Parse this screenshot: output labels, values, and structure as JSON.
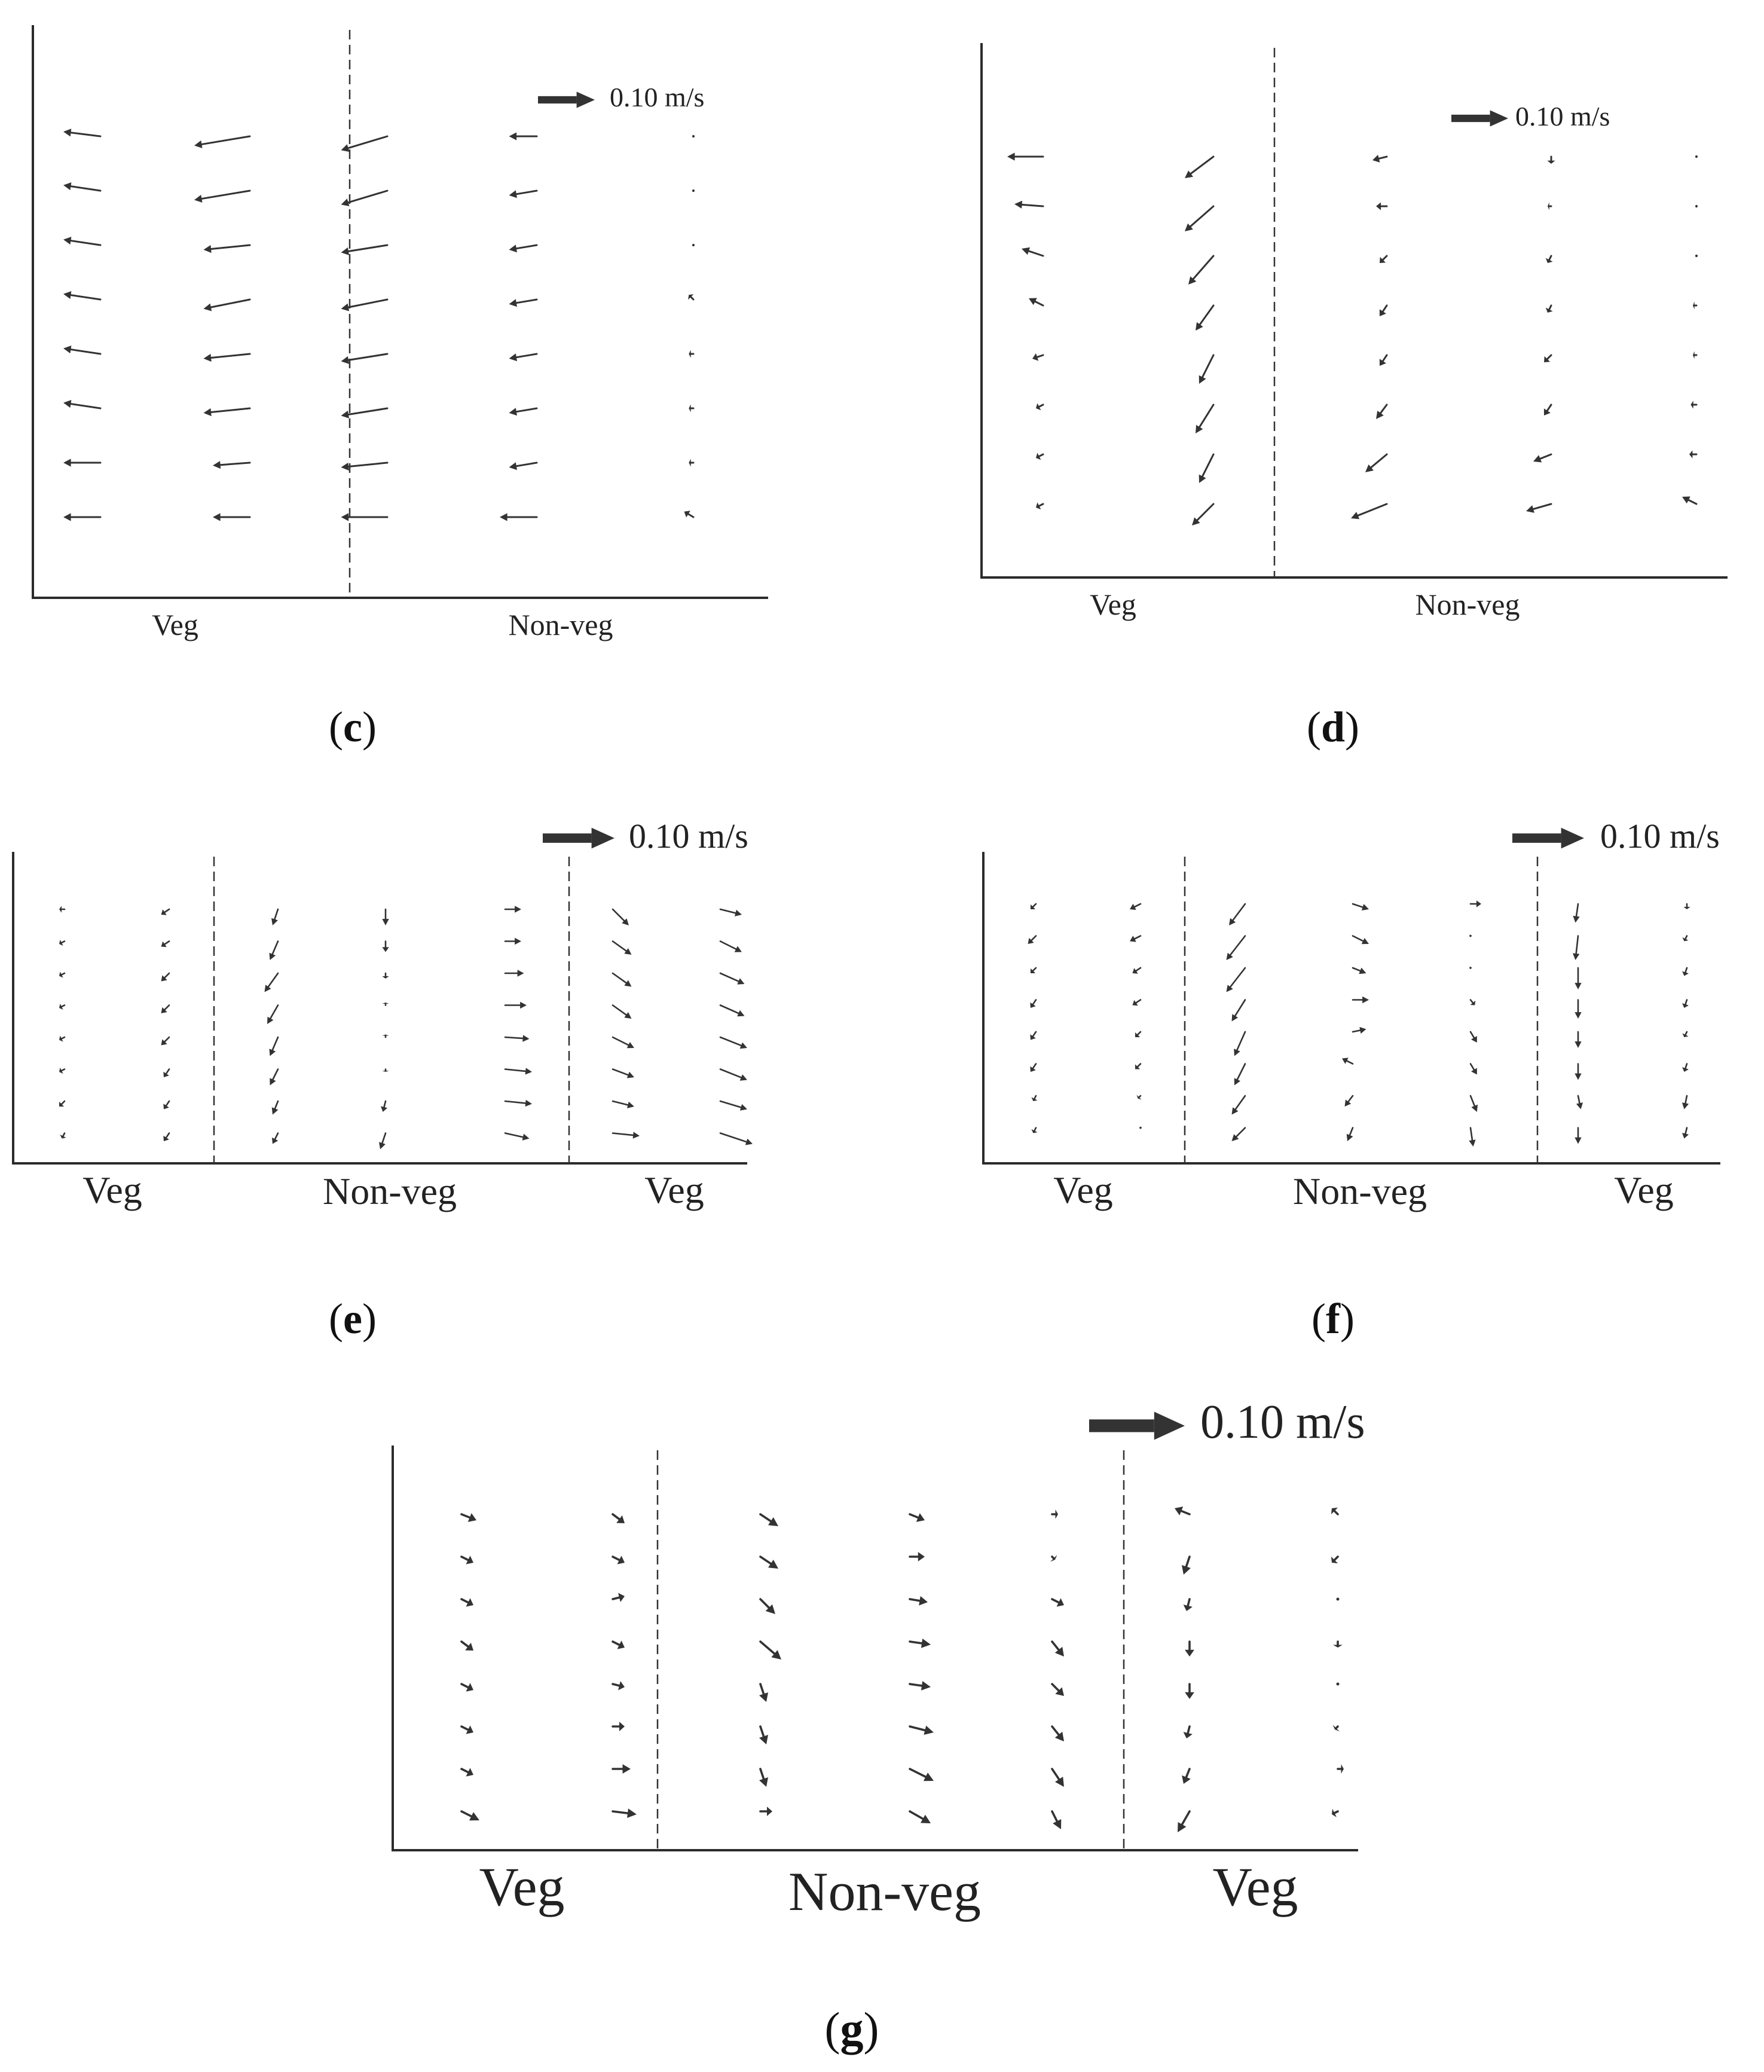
{
  "chart_data": [
    {
      "type": "vector-field",
      "panel": "c",
      "caption": "(c)",
      "scale_label": "0.10 m/s",
      "scale_value": 0.1,
      "zone_labels": [
        "Veg",
        "Non-veg"
      ],
      "columns": [
        {
          "zone": "Veg",
          "u": [
            -0.04,
            -0.04,
            -0.04,
            -0.04,
            -0.04,
            -0.04,
            -0.04,
            -0.04
          ],
          "v": [
            0.005,
            0.006,
            0.006,
            0.006,
            0.006,
            0.006,
            0.0,
            0.0
          ]
        },
        {
          "zone": "Veg",
          "u": [
            -0.06,
            -0.06,
            -0.05,
            -0.05,
            -0.05,
            -0.05,
            -0.04,
            -0.04
          ],
          "v": [
            -0.01,
            -0.01,
            -0.005,
            -0.01,
            -0.005,
            -0.005,
            -0.003,
            0.0
          ]
        },
        {
          "zone": "Non-veg",
          "u": [
            -0.05,
            -0.05,
            -0.05,
            -0.05,
            -0.05,
            -0.05,
            -0.05,
            -0.05
          ],
          "v": [
            -0.015,
            -0.015,
            -0.008,
            -0.01,
            -0.008,
            -0.008,
            -0.005,
            0.0
          ]
        },
        {
          "zone": "Non-veg",
          "u": [
            -0.03,
            -0.03,
            -0.03,
            -0.03,
            -0.03,
            -0.03,
            -0.03,
            -0.04
          ],
          "v": [
            0.0,
            -0.005,
            -0.005,
            -0.005,
            -0.005,
            -0.005,
            -0.005,
            0.0
          ]
        },
        {
          "zone": "Non-veg",
          "u": [
            0.0,
            0.0,
            0.0,
            -0.005,
            -0.005,
            -0.005,
            -0.005,
            -0.01
          ],
          "v": [
            0.0,
            0.0,
            0.0,
            0.005,
            0.0,
            0.0,
            0.0,
            0.006
          ]
        }
      ]
    },
    {
      "type": "vector-field",
      "panel": "d",
      "caption": "(d)",
      "scale_label": "0.10 m/s",
      "scale_value": 0.1,
      "zone_labels": [
        "Veg",
        "Non-veg"
      ],
      "columns": [
        {
          "zone": "Veg",
          "u": [
            -0.05,
            -0.04,
            -0.03,
            -0.02,
            -0.015,
            -0.01,
            -0.01,
            -0.01
          ],
          "v": [
            0.0,
            0.003,
            0.01,
            0.01,
            -0.005,
            -0.005,
            -0.005,
            -0.005
          ]
        },
        {
          "zone": "Veg",
          "u": [
            -0.04,
            -0.04,
            -0.035,
            -0.025,
            -0.02,
            -0.025,
            -0.02,
            -0.03
          ],
          "v": [
            -0.03,
            -0.035,
            -0.04,
            -0.035,
            -0.04,
            -0.04,
            -0.04,
            -0.03
          ]
        },
        {
          "zone": "Non-veg",
          "u": [
            -0.02,
            -0.015,
            -0.01,
            -0.01,
            -0.01,
            -0.015,
            -0.03,
            -0.05
          ],
          "v": [
            -0.005,
            0.0,
            -0.01,
            -0.015,
            -0.015,
            -0.02,
            -0.025,
            -0.02
          ]
        },
        {
          "zone": "Non-veg",
          "u": [
            0.0,
            -0.005,
            -0.005,
            -0.005,
            -0.01,
            -0.01,
            -0.025,
            -0.035
          ],
          "v": [
            -0.01,
            0.0,
            -0.01,
            -0.01,
            -0.01,
            -0.015,
            -0.01,
            -0.01
          ]
        },
        {
          "zone": "Non-veg",
          "u": [
            0.0,
            0.0,
            0.0,
            -0.005,
            -0.005,
            -0.008,
            -0.01,
            -0.02
          ],
          "v": [
            0.0,
            0.0,
            0.0,
            0.0,
            0.0,
            0.0,
            0.0,
            0.01
          ]
        }
      ]
    },
    {
      "type": "vector-field",
      "panel": "e",
      "caption": "(e)",
      "scale_label": "0.10 m/s",
      "scale_value": 0.1,
      "zone_labels": [
        "Veg",
        "Non-veg",
        "Veg"
      ],
      "columns": [
        {
          "zone": "Veg",
          "u": [
            -0.01,
            -0.01,
            -0.01,
            -0.01,
            -0.01,
            -0.01,
            -0.01,
            -0.005
          ],
          "v": [
            0.0,
            -0.005,
            -0.005,
            -0.005,
            -0.005,
            -0.005,
            -0.01,
            -0.01
          ]
        },
        {
          "zone": "Veg",
          "u": [
            -0.015,
            -0.015,
            -0.015,
            -0.015,
            -0.015,
            -0.01,
            -0.01,
            -0.01
          ],
          "v": [
            -0.01,
            -0.01,
            -0.015,
            -0.015,
            -0.015,
            -0.015,
            -0.015,
            -0.015
          ]
        },
        {
          "zone": "Non-veg",
          "u": [
            -0.01,
            -0.015,
            -0.025,
            -0.02,
            -0.015,
            -0.015,
            -0.01,
            -0.01
          ],
          "v": [
            -0.03,
            -0.035,
            -0.035,
            -0.035,
            -0.035,
            -0.03,
            -0.025,
            -0.02
          ]
        },
        {
          "zone": "Non-veg",
          "u": [
            0.0,
            0.0,
            0.0,
            0.0,
            0.0,
            0.0,
            -0.005,
            -0.01
          ],
          "v": [
            -0.03,
            -0.02,
            -0.01,
            0.005,
            0.005,
            -0.005,
            -0.02,
            -0.03
          ]
        },
        {
          "zone": "Non-veg",
          "u": [
            0.03,
            0.03,
            0.035,
            0.04,
            0.045,
            0.05,
            0.05,
            0.045
          ],
          "v": [
            0.0,
            0.0,
            0.0,
            0.0,
            -0.003,
            -0.005,
            -0.005,
            -0.01
          ]
        },
        {
          "zone": "Veg",
          "u": [
            0.03,
            0.035,
            0.035,
            0.035,
            0.04,
            0.04,
            0.04,
            0.05
          ],
          "v": [
            -0.03,
            -0.025,
            -0.025,
            -0.025,
            -0.02,
            -0.015,
            -0.01,
            -0.005
          ]
        },
        {
          "zone": "Veg",
          "u": [
            0.04,
            0.04,
            0.045,
            0.045,
            0.05,
            0.05,
            0.05,
            0.06
          ],
          "v": [
            -0.01,
            -0.02,
            -0.02,
            -0.02,
            -0.02,
            -0.02,
            -0.015,
            -0.02
          ]
        }
      ]
    },
    {
      "type": "vector-field",
      "panel": "f",
      "caption": "(f)",
      "scale_label": "0.10 m/s",
      "scale_value": 0.1,
      "zone_labels": [
        "Veg",
        "Non-veg",
        "Veg"
      ],
      "columns": [
        {
          "zone": "Veg",
          "u": [
            -0.01,
            -0.015,
            -0.01,
            -0.01,
            -0.01,
            -0.01,
            -0.005,
            -0.005
          ],
          "v": [
            -0.01,
            -0.015,
            -0.01,
            -0.015,
            -0.015,
            -0.015,
            -0.01,
            -0.01
          ]
        },
        {
          "zone": "Veg",
          "u": [
            -0.02,
            -0.02,
            -0.015,
            -0.015,
            -0.01,
            -0.01,
            -0.005,
            0.0
          ],
          "v": [
            -0.01,
            -0.01,
            -0.01,
            -0.01,
            -0.01,
            -0.01,
            -0.005,
            0.0
          ]
        },
        {
          "zone": "Non-veg",
          "u": [
            -0.03,
            -0.035,
            -0.035,
            -0.025,
            -0.02,
            -0.02,
            -0.025,
            -0.025
          ],
          "v": [
            -0.04,
            -0.045,
            -0.045,
            -0.04,
            -0.045,
            -0.04,
            -0.035,
            -0.025
          ]
        },
        {
          "zone": "Non-veg",
          "u": [
            0.03,
            0.03,
            0.025,
            0.03,
            0.025,
            -0.02,
            -0.015,
            -0.01
          ],
          "v": [
            -0.01,
            -0.015,
            -0.01,
            0.0,
            0.005,
            0.01,
            -0.02,
            -0.025
          ]
        },
        {
          "zone": "Non-veg",
          "u": [
            0.02,
            0.0,
            0.0,
            0.008,
            0.012,
            0.012,
            0.012,
            0.005
          ],
          "v": [
            0.0,
            0.0,
            0.0,
            -0.01,
            -0.02,
            -0.02,
            -0.03,
            -0.035
          ]
        },
        {
          "zone": "Veg",
          "u": [
            -0.005,
            -0.005,
            0.0,
            0.0,
            0.0,
            0.0,
            0.005,
            0.0
          ],
          "v": [
            -0.035,
            -0.045,
            -0.04,
            -0.035,
            -0.03,
            -0.03,
            -0.025,
            -0.03
          ]
        },
        {
          "zone": "Veg",
          "u": [
            0.0,
            -0.005,
            -0.005,
            -0.005,
            -0.005,
            -0.005,
            -0.005,
            -0.005
          ],
          "v": [
            -0.01,
            -0.01,
            -0.015,
            -0.015,
            -0.01,
            -0.015,
            -0.025,
            -0.02
          ]
        }
      ]
    },
    {
      "type": "vector-field",
      "panel": "g",
      "caption": "(g)",
      "scale_label": "0.10 m/s",
      "scale_value": 0.1,
      "zone_labels": [
        "Veg",
        "Non-veg",
        "Veg"
      ],
      "columns": [
        {
          "zone": "Veg",
          "u": [
            0.025,
            0.02,
            0.02,
            0.02,
            0.02,
            0.02,
            0.02,
            0.03
          ],
          "v": [
            -0.01,
            -0.01,
            -0.01,
            -0.015,
            -0.01,
            -0.01,
            -0.01,
            -0.015
          ]
        },
        {
          "zone": "Veg",
          "u": [
            0.02,
            0.02,
            0.02,
            0.02,
            0.02,
            0.02,
            0.03,
            0.04
          ],
          "v": [
            -0.015,
            -0.01,
            0.005,
            -0.01,
            -0.005,
            0.0,
            0.0,
            -0.005
          ]
        },
        {
          "zone": "Non-veg",
          "u": [
            0.03,
            0.03,
            0.025,
            0.035,
            0.01,
            0.01,
            0.01,
            0.02
          ],
          "v": [
            -0.02,
            -0.02,
            -0.025,
            -0.03,
            -0.03,
            -0.03,
            -0.03,
            0.0
          ]
        },
        {
          "zone": "Non-veg",
          "u": [
            0.025,
            0.025,
            0.03,
            0.035,
            0.035,
            0.04,
            0.04,
            0.035
          ],
          "v": [
            -0.01,
            0.0,
            -0.005,
            -0.005,
            -0.005,
            -0.01,
            -0.02,
            -0.02
          ]
        },
        {
          "zone": "Non-veg",
          "u": [
            0.01,
            0.005,
            0.02,
            0.02,
            0.02,
            0.02,
            0.02,
            0.015
          ],
          "v": [
            0.0,
            -0.005,
            -0.01,
            -0.025,
            -0.02,
            -0.025,
            -0.03,
            -0.03
          ]
        },
        {
          "zone": "Veg",
          "u": [
            -0.025,
            -0.01,
            -0.005,
            0.0,
            0.0,
            -0.005,
            -0.01,
            -0.02
          ],
          "v": [
            0.01,
            -0.03,
            -0.02,
            -0.025,
            -0.025,
            -0.02,
            -0.025,
            -0.035
          ]
        },
        {
          "zone": "Veg",
          "u": [
            -0.01,
            -0.01,
            0.0,
            0.0,
            0.0,
            -0.005,
            0.01,
            -0.01
          ],
          "v": [
            0.01,
            -0.01,
            0.0,
            -0.01,
            0.0,
            -0.005,
            0.0,
            -0.005
          ]
        }
      ]
    }
  ]
}
